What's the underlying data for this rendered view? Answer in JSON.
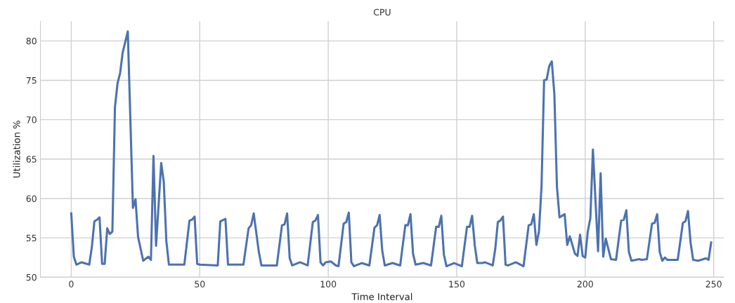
{
  "chart_data": {
    "type": "line",
    "title": "CPU",
    "xlabel": "Time Interval",
    "ylabel": "Utilization %",
    "xlim": [
      -12,
      254
    ],
    "ylim": [
      50,
      82.5
    ],
    "xticks": [
      0,
      50,
      100,
      150,
      200,
      250
    ],
    "yticks": [
      50,
      55,
      60,
      65,
      70,
      75,
      80
    ],
    "grid": true,
    "legend": false,
    "marker": "none",
    "line_style": "solid",
    "series": [
      {
        "color": "#4c72b0",
        "x": [
          0,
          1,
          2,
          4,
          7,
          8,
          9,
          10,
          11,
          12,
          13,
          14,
          15,
          16,
          17,
          18,
          19,
          20,
          22,
          24,
          25,
          26,
          28,
          30,
          31,
          32,
          33,
          35,
          36,
          37,
          38,
          44,
          46,
          47,
          48,
          49,
          50,
          57,
          58,
          60,
          61,
          67,
          69,
          70,
          71,
          73,
          74,
          80,
          82,
          83,
          84,
          85,
          86,
          89,
          92,
          94,
          95,
          96,
          97,
          98,
          99,
          101,
          103,
          104,
          106,
          107,
          108,
          109,
          110,
          113,
          116,
          118,
          119,
          120,
          121,
          122,
          125,
          128,
          130,
          131,
          132,
          133,
          134,
          137,
          140,
          142,
          143,
          144,
          145,
          146,
          149,
          152,
          154,
          155,
          156,
          157,
          158,
          160,
          161,
          164,
          165,
          166,
          167,
          168,
          169,
          170,
          173,
          176,
          178,
          179,
          180,
          181,
          182,
          183,
          184,
          185,
          186,
          187,
          188,
          189,
          190,
          192,
          193,
          194,
          196,
          197,
          198,
          199,
          200,
          201,
          202,
          203,
          205,
          206,
          207,
          208,
          210,
          212,
          214,
          215,
          216,
          217,
          218,
          221,
          222,
          224,
          226,
          227,
          228,
          229,
          230,
          231,
          232,
          236,
          238,
          239,
          240,
          241,
          242,
          244,
          247,
          248,
          249
        ],
        "values": [
          58.1,
          52.6,
          51.6,
          51.9,
          51.6,
          53.8,
          57.1,
          57.3,
          57.6,
          51.7,
          51.7,
          56.2,
          55.5,
          55.8,
          71.6,
          74.6,
          75.9,
          78.5,
          81.2,
          58.8,
          59.9,
          55.1,
          52.1,
          52.6,
          52.2,
          65.4,
          54.0,
          64.5,
          62.1,
          54.6,
          51.6,
          51.6,
          57.2,
          57.3,
          57.7,
          51.7,
          51.6,
          51.5,
          57.1,
          57.4,
          51.6,
          51.6,
          56.2,
          56.6,
          58.1,
          53.2,
          51.5,
          51.5,
          56.6,
          56.7,
          58.1,
          52.4,
          51.5,
          51.9,
          51.5,
          57.0,
          57.2,
          57.9,
          51.9,
          51.5,
          51.9,
          52.0,
          51.5,
          51.4,
          56.8,
          57.0,
          58.2,
          51.9,
          51.4,
          51.8,
          51.5,
          56.3,
          56.6,
          57.9,
          53.4,
          51.5,
          51.8,
          51.5,
          56.6,
          56.6,
          58.0,
          53.0,
          51.6,
          51.8,
          51.5,
          56.4,
          56.4,
          57.8,
          52.9,
          51.4,
          51.8,
          51.4,
          56.4,
          56.4,
          57.8,
          54.1,
          51.8,
          51.8,
          51.9,
          51.5,
          53.6,
          57.0,
          57.2,
          57.7,
          51.6,
          51.5,
          51.9,
          51.4,
          56.6,
          56.7,
          58.0,
          54.1,
          55.8,
          61.5,
          75.0,
          75.1,
          76.8,
          77.4,
          73.2,
          61.5,
          57.6,
          58.0,
          54.1,
          55.2,
          53.0,
          52.7,
          55.4,
          52.7,
          52.5,
          55.8,
          57.5,
          66.2,
          53.3,
          63.2,
          52.6,
          54.9,
          52.3,
          52.2,
          57.2,
          57.3,
          58.5,
          53.2,
          52.1,
          52.3,
          52.2,
          52.3,
          56.8,
          56.9,
          58.0,
          53.2,
          52.1,
          52.5,
          52.2,
          52.2,
          56.9,
          57.1,
          58.4,
          54.4,
          52.2,
          52.1,
          52.4,
          52.2,
          54.4
        ]
      }
    ]
  }
}
